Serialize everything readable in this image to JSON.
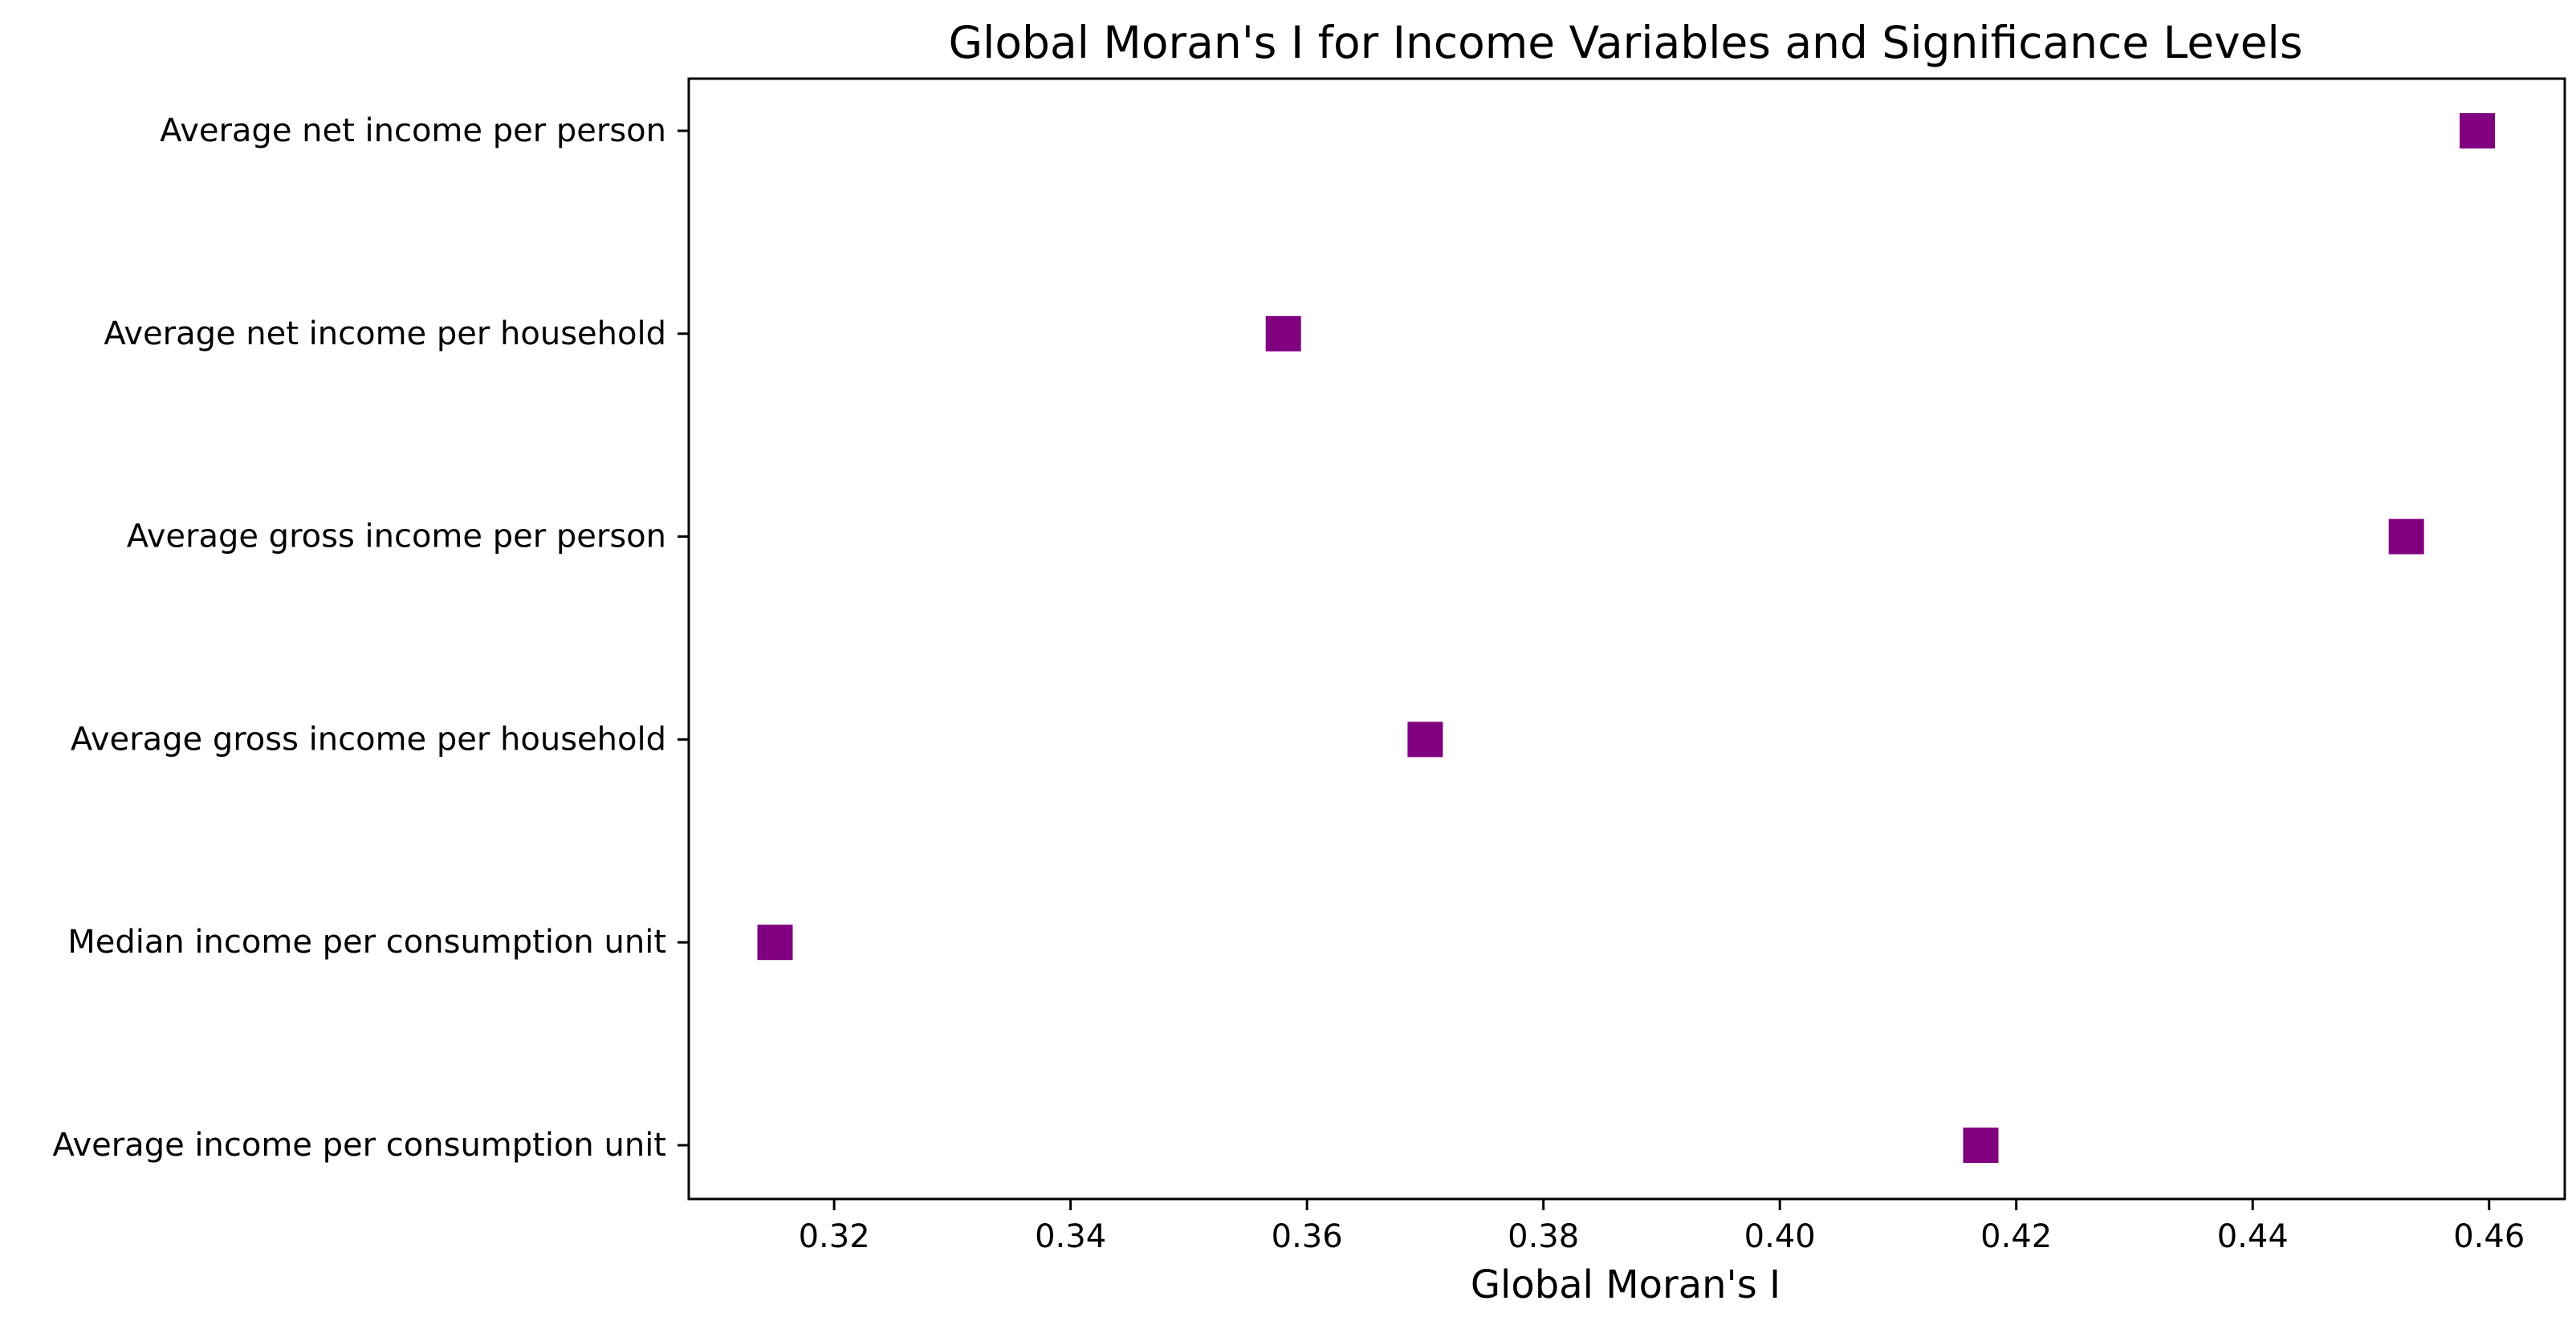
{
  "chart_data": {
    "type": "scatter",
    "title": "Global Moran's I for Income Variables and Significance Levels",
    "xlabel": "Global Moran's I",
    "ylabel": "",
    "categories": [
      "Average income per consumption unit",
      "Median income per consumption unit",
      "Average gross income per household",
      "Average gross income per person",
      "Average net income per household",
      "Average net income per person"
    ],
    "values": [
      0.417,
      0.315,
      0.37,
      0.453,
      0.358,
      0.459
    ],
    "xlim": [
      0.3077,
      0.4664
    ],
    "xticks": [
      0.32,
      0.34,
      0.36,
      0.38,
      0.4,
      0.42,
      0.44,
      0.46
    ],
    "xtick_labels": [
      "0.32",
      "0.34",
      "0.36",
      "0.38",
      "0.40",
      "0.42",
      "0.44",
      "0.46"
    ],
    "marker": "square",
    "marker_color": "#800080",
    "grid": false,
    "legend": "none"
  }
}
